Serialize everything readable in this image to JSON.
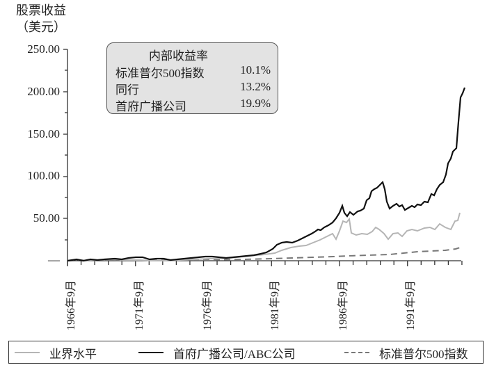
{
  "chart_data": {
    "type": "line",
    "title": "",
    "ylabel": "股票收益（美元）",
    "xlabel": "",
    "ylim": [
      0,
      250
    ],
    "yticks": [
      "—",
      "50.00",
      "100.00",
      "150.00",
      "200.00",
      "250.00"
    ],
    "xticks": [
      "1966年9月",
      "1971年9月",
      "1976年9月",
      "1981年9月",
      "1986年9月",
      "1991年9月"
    ],
    "x": [
      1966.75,
      1971.75,
      1976.75,
      1981.75,
      1983.5,
      1985.0,
      1986.5,
      1987.0,
      1988.5,
      1989.5,
      1990.0,
      1991.0,
      1992.0,
      1993.0,
      1994.0,
      1994.5,
      1995.0,
      1995.75
    ],
    "series": [
      {
        "name": "业界水平",
        "style": "solid-light-gray",
        "values": [
          1,
          2,
          2,
          7,
          15,
          27,
          40,
          50,
          38,
          35,
          40,
          36,
          42,
          45,
          45,
          42,
          48,
          57
        ]
      },
      {
        "name": "首府广播公司/ABC公司",
        "style": "solid-black",
        "values": [
          1,
          3,
          3,
          9,
          21,
          35,
          60,
          66,
          70,
          89,
          65,
          66,
          80,
          100,
          135,
          135,
          185,
          205
        ]
      },
      {
        "name": "标准普尔500指数",
        "style": "dashed-gray",
        "values": [
          1,
          1,
          1.5,
          2,
          3,
          4,
          6,
          6.5,
          7,
          8,
          8.5,
          9,
          10,
          10.5,
          11,
          11.5,
          12,
          15
        ]
      }
    ],
    "annotation": {
      "title": "内部收益率",
      "rows": [
        {
          "name": "标准普尔500指数",
          "value": "10.1%"
        },
        {
          "name": "同行",
          "value": "13.2%"
        },
        {
          "name": "首府广播公司",
          "value": "19.9%"
        }
      ]
    },
    "legend_position": "bottom",
    "grid": false
  },
  "axis": {
    "ylabel_line1": "股票收益",
    "ylabel_line2": "（美元）",
    "yticks": {
      "t0": "—",
      "t50": "50.00",
      "t100": "100.00",
      "t150": "150.00",
      "t200": "200.00",
      "t250": "250.00"
    },
    "xticks": [
      "1966年9月",
      "1971年9月",
      "1976年9月",
      "1981年9月",
      "1986年9月",
      "1991年9月"
    ]
  },
  "irr_box": {
    "title": "内部收益率",
    "rows": [
      {
        "name": "标准普尔500指数",
        "value": "10.1%"
      },
      {
        "name": "同行",
        "value": "13.2%"
      },
      {
        "name": "首府广播公司",
        "value": "19.9%"
      }
    ]
  },
  "legend": {
    "items": [
      {
        "label": "业界水平",
        "color": "#b5b5b5"
      },
      {
        "label": "首府广播公司/ABC公司",
        "color": "#111111"
      },
      {
        "label": "标准普尔500指数",
        "color": "#777777"
      }
    ]
  }
}
